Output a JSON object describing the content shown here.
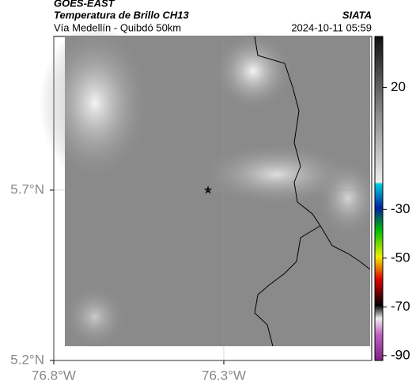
{
  "header": {
    "title": "GOES-EAST",
    "subtitle": "Temperatura de Brillo CH13",
    "source": "SIATA",
    "region": "Vía Medellín - Quibdó 50km",
    "datetime": "2024-10-11 05:59"
  },
  "map": {
    "xlim": [
      -76.8,
      -75.865
    ],
    "ylim": [
      5.2,
      6.151
    ],
    "xticks": [
      {
        "value": -76.8,
        "label": "76.8°W"
      },
      {
        "value": -76.3,
        "label": "76.3°W"
      }
    ],
    "yticks": [
      {
        "value": 5.2,
        "label": "5.2°N"
      },
      {
        "value": 5.7,
        "label": "5.7°N"
      }
    ]
  },
  "colorbar": {
    "lim": [
      -92,
      41
    ],
    "ticks": [
      20,
      -30,
      -50,
      -70,
      -90
    ]
  }
}
